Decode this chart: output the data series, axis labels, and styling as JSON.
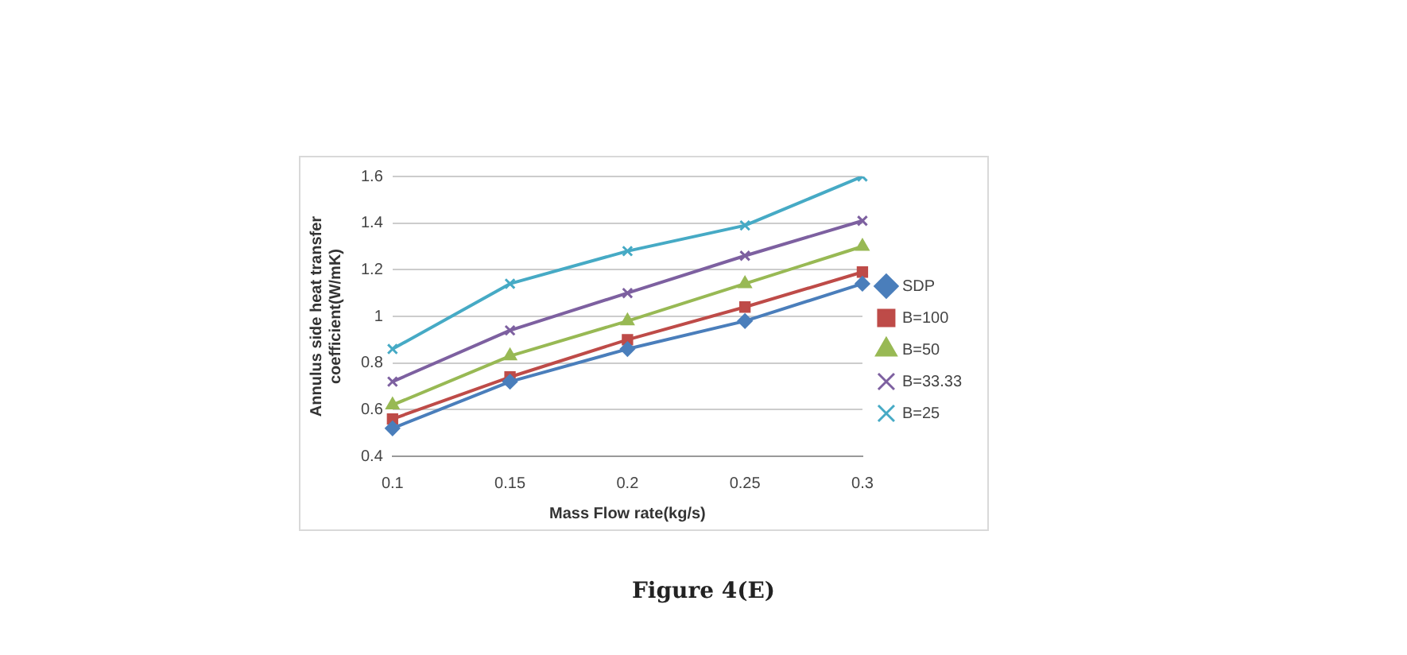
{
  "chart_data": {
    "type": "line",
    "xlabel": "Mass Flow rate(kg/s)",
    "ylabel": "Annulus side heat transfer coefficient(W/mK)",
    "categories": [
      "0.1",
      "0.15",
      "0.2",
      "0.25",
      "0.3"
    ],
    "series": [
      {
        "name": "SDP",
        "color": "#4a7ebb",
        "marker": "diamond",
        "values": [
          0.52,
          0.72,
          0.86,
          0.98,
          1.14
        ]
      },
      {
        "name": "B=100",
        "color": "#be4b48",
        "marker": "square",
        "values": [
          0.56,
          0.74,
          0.9,
          1.04,
          1.19
        ]
      },
      {
        "name": "B=50",
        "color": "#98b954",
        "marker": "triangle",
        "values": [
          0.62,
          0.83,
          0.98,
          1.14,
          1.3
        ]
      },
      {
        "name": "B=33.33",
        "color": "#7d60a0",
        "marker": "cross",
        "values": [
          0.72,
          0.94,
          1.1,
          1.26,
          1.41
        ]
      },
      {
        "name": "B=25",
        "color": "#46aac5",
        "marker": "cross",
        "values": [
          0.86,
          1.14,
          1.28,
          1.39,
          1.6
        ]
      }
    ],
    "ylim": [
      0.4,
      1.6
    ],
    "yticks": [
      0.4,
      0.6,
      0.8,
      1,
      1.2,
      1.4,
      1.6
    ],
    "grid": "y",
    "legend": "right",
    "annotations": [
      "Figure 4(E)"
    ]
  }
}
